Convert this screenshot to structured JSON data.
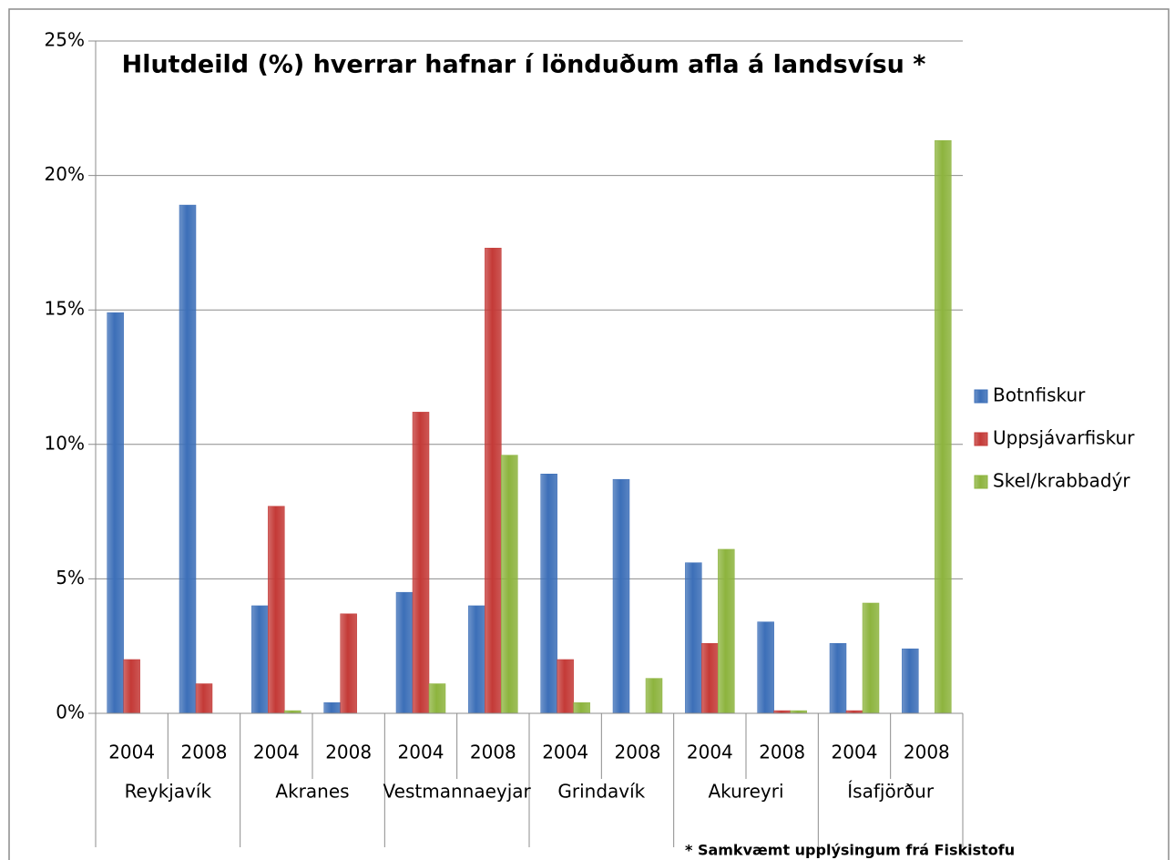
{
  "chart_data": {
    "type": "bar",
    "title": "Hlutdeild (%) hverrar hafnar í lönduðum afla á landsvísu *",
    "footnote": "* Samkvæmt upplýsingum frá Fiskistofu",
    "categories": [
      "2004",
      "2008",
      "2004",
      "2008",
      "2004",
      "2008",
      "2004",
      "2008",
      "2004",
      "2008",
      "2004",
      "2008"
    ],
    "groups": [
      "Reykjavík",
      "Akranes",
      "Vestmannaeyjar",
      "Grindavík",
      "Akureyri",
      "Ísafjörður"
    ],
    "series": [
      {
        "name": "Botnfiskur",
        "color": "#3c6fb8",
        "values": [
          14.9,
          18.9,
          4.0,
          0.4,
          4.5,
          4.0,
          8.9,
          8.7,
          5.6,
          3.4,
          2.6,
          2.4
        ]
      },
      {
        "name": "Uppsjávarfiskur",
        "color": "#c43a37",
        "values": [
          2.0,
          1.1,
          7.7,
          3.7,
          11.2,
          17.3,
          2.0,
          0,
          2.6,
          0.1,
          0.1,
          0
        ]
      },
      {
        "name": "Skel/krabbadýr",
        "color": "#8db43e",
        "values": [
          0,
          0,
          0.1,
          0,
          1.1,
          9.6,
          0.4,
          1.3,
          6.1,
          0.1,
          4.1,
          21.3
        ]
      }
    ],
    "ylim": [
      0,
      25
    ],
    "yticks": [
      {
        "value": 0,
        "label": "0%"
      },
      {
        "value": 5,
        "label": "5%"
      },
      {
        "value": 10,
        "label": "10%"
      },
      {
        "value": 15,
        "label": "15%"
      },
      {
        "value": 20,
        "label": "20%"
      },
      {
        "value": 25,
        "label": "25%"
      }
    ],
    "grid": true,
    "legend": "right"
  }
}
